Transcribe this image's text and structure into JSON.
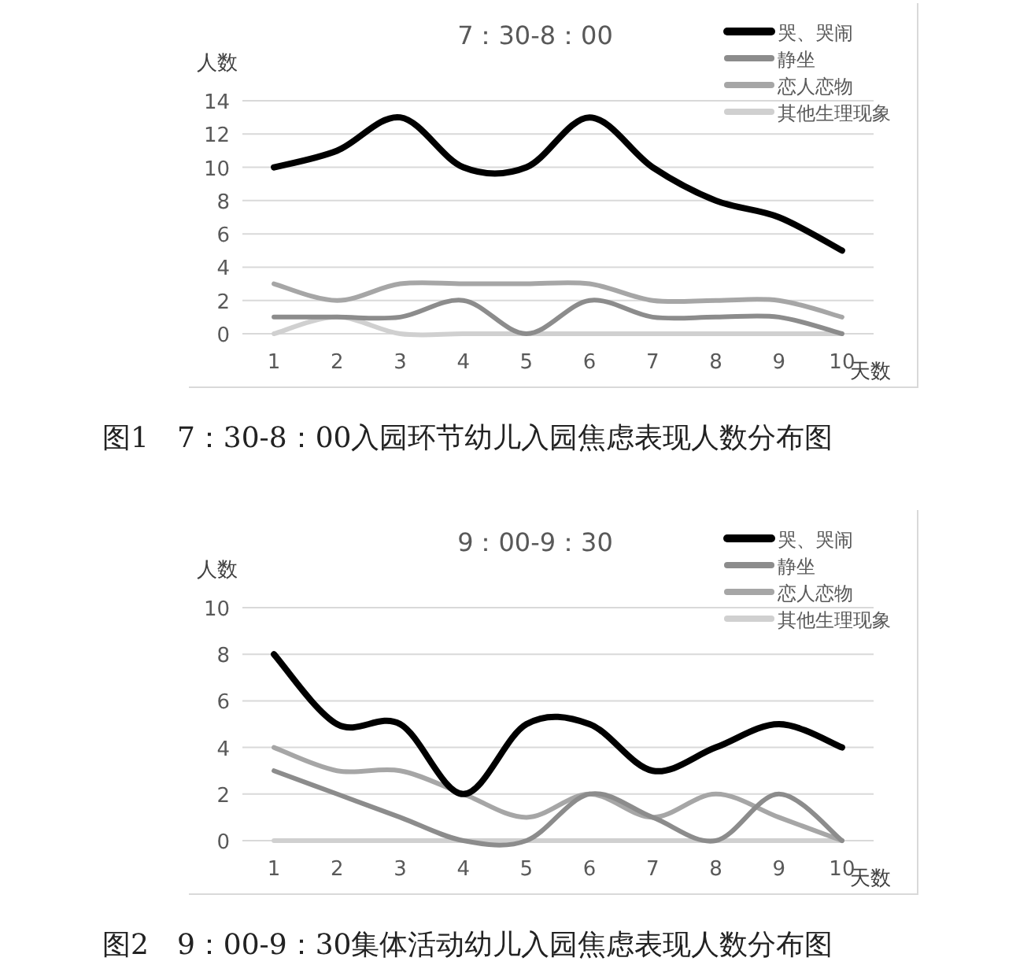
{
  "chart_data": [
    {
      "type": "line",
      "title": "7：30-8：00",
      "xlabel": "天数",
      "ylabel": "人数",
      "categories": [
        "1",
        "2",
        "3",
        "4",
        "5",
        "6",
        "7",
        "8",
        "9",
        "10"
      ],
      "series": [
        {
          "name": "哭、哭闹",
          "color": "#000000",
          "values": [
            10,
            11,
            13,
            10,
            10,
            13,
            10,
            8,
            7,
            5
          ]
        },
        {
          "name": "静坐",
          "color": "#8c8c8c",
          "values": [
            1,
            1,
            1,
            2,
            0,
            2,
            1,
            1,
            1,
            0
          ]
        },
        {
          "name": "恋人恋物",
          "color": "#a6a6a6",
          "values": [
            3,
            2,
            3,
            3,
            3,
            3,
            2,
            2,
            2,
            1
          ]
        },
        {
          "name": "其他生理现象",
          "color": "#d0d0d0",
          "values": [
            0,
            1,
            0,
            0,
            0,
            0,
            0,
            0,
            0,
            0
          ]
        }
      ],
      "ylim": [
        0,
        14
      ],
      "yticks": [
        0,
        2,
        4,
        6,
        8,
        10,
        12,
        14
      ],
      "grid": "y",
      "legend": "top right",
      "marker": "none",
      "line_style": "solid",
      "annotations": [
        "图1　7：30-8：00入园环节幼儿入园焦虑表现人数分布图"
      ]
    },
    {
      "type": "line",
      "title": "9：00-9：30",
      "xlabel": "天数",
      "ylabel": "人数",
      "categories": [
        "1",
        "2",
        "3",
        "4",
        "5",
        "6",
        "7",
        "8",
        "9",
        "10"
      ],
      "series": [
        {
          "name": "哭、哭闹",
          "color": "#000000",
          "values": [
            8,
            5,
            5,
            2,
            5,
            5,
            3,
            4,
            5,
            4
          ]
        },
        {
          "name": "静坐",
          "color": "#8c8c8c",
          "values": [
            3,
            2,
            1,
            0,
            0,
            2,
            1,
            0,
            2,
            0
          ]
        },
        {
          "name": "恋人恋物",
          "color": "#a6a6a6",
          "values": [
            4,
            3,
            3,
            2,
            1,
            2,
            1,
            2,
            1,
            0
          ]
        },
        {
          "name": "其他生理现象",
          "color": "#d0d0d0",
          "values": [
            0,
            0,
            0,
            0,
            0,
            0,
            0,
            0,
            0,
            0
          ]
        }
      ],
      "ylim": [
        0,
        10
      ],
      "yticks": [
        0,
        2,
        4,
        6,
        8,
        10
      ],
      "grid": "y",
      "legend": "top right",
      "marker": "none",
      "line_style": "solid",
      "annotations": [
        "图2　9：00-9：30集体活动幼儿入园焦虑表现人数分布图"
      ]
    }
  ]
}
